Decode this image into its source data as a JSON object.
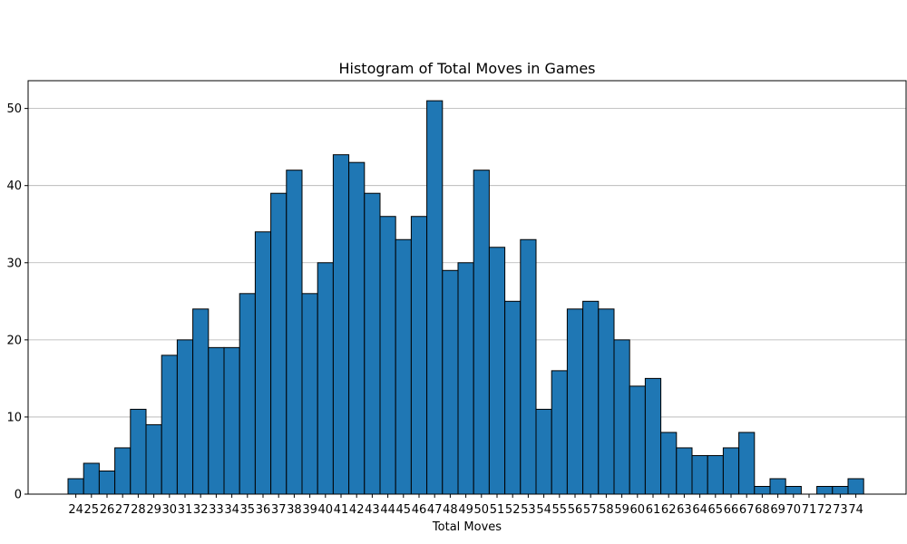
{
  "chart_data": {
    "type": "bar",
    "title": "Histogram of Total Moves in Games",
    "xlabel": "Total Moves",
    "ylabel": "",
    "categories": [
      24,
      25,
      26,
      27,
      28,
      29,
      30,
      31,
      32,
      33,
      34,
      35,
      36,
      37,
      38,
      39,
      40,
      41,
      42,
      43,
      44,
      45,
      46,
      47,
      48,
      49,
      50,
      51,
      52,
      53,
      54,
      55,
      56,
      57,
      58,
      59,
      60,
      61,
      62,
      63,
      64,
      65,
      66,
      67,
      68,
      69,
      70,
      71,
      72,
      73,
      74
    ],
    "values": [
      2,
      4,
      3,
      6,
      11,
      9,
      18,
      20,
      24,
      19,
      19,
      26,
      34,
      39,
      42,
      26,
      30,
      44,
      43,
      39,
      36,
      33,
      36,
      51,
      29,
      30,
      42,
      32,
      25,
      33,
      11,
      16,
      24,
      25,
      24,
      20,
      14,
      15,
      8,
      6,
      5,
      5,
      6,
      8,
      1,
      2,
      1,
      0,
      1,
      1,
      2
    ],
    "ylim": [
      0,
      53.6
    ],
    "yticks": [
      0,
      10,
      20,
      30,
      40,
      50
    ],
    "grid": "y-axis",
    "legend": "none",
    "colors": {
      "bar": "#1f77b4",
      "edge": "#000000",
      "grid": "#b0b0b0"
    }
  }
}
